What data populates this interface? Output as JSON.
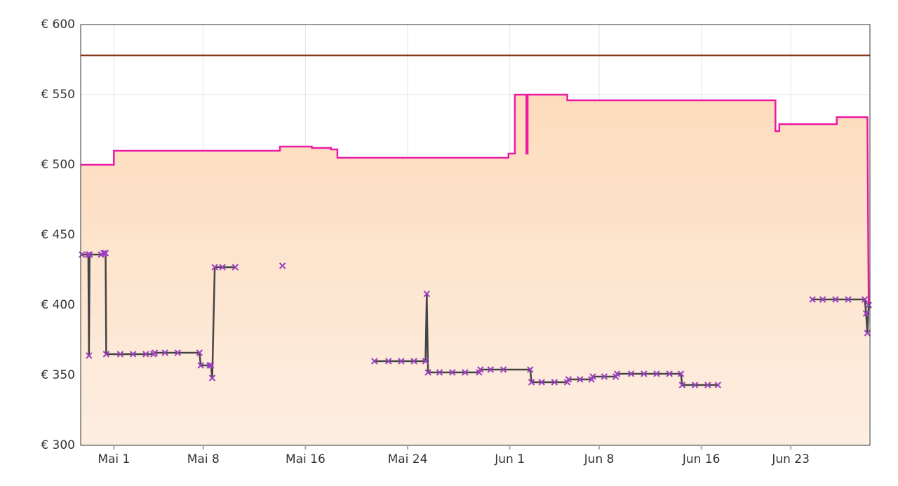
{
  "chart_data": {
    "type": "line",
    "xlim": [
      -2.6,
      59.2
    ],
    "xticks": [
      {
        "value": 0,
        "label": "Mai 1"
      },
      {
        "value": 7,
        "label": "Mai 8"
      },
      {
        "value": 15,
        "label": "Mai 16"
      },
      {
        "value": 23,
        "label": "Mai 24"
      },
      {
        "value": 31,
        "label": "Jun 1"
      },
      {
        "value": 38,
        "label": "Jun 8"
      },
      {
        "value": 46,
        "label": "Jun 16"
      },
      {
        "value": 53,
        "label": "Jun 23"
      }
    ],
    "ylim": [
      300,
      600
    ],
    "yticks": [
      {
        "value": 300,
        "label": "€ 300"
      },
      {
        "value": 350,
        "label": "€ 350"
      },
      {
        "value": 400,
        "label": "€ 400"
      },
      {
        "value": 450,
        "label": "€ 450"
      },
      {
        "value": 500,
        "label": "€ 500"
      },
      {
        "value": 550,
        "label": "€ 550"
      },
      {
        "value": 600,
        "label": "€ 600"
      }
    ],
    "grid": true,
    "series": [
      {
        "style": "area-line",
        "color": "#ec1aa4",
        "x": [
          -2.6,
          0,
          0,
          13,
          13,
          15.5,
          15.5,
          17,
          17,
          17.5,
          17.5,
          30.9,
          30.9,
          31.4,
          31.4,
          32.3,
          32.3,
          32.4,
          32.4,
          35.5,
          35.5,
          51.8,
          51.8,
          52.1,
          52.1,
          56.6,
          56.6,
          59.0,
          59.1
        ],
        "values": [
          500,
          500,
          510,
          510,
          513,
          513,
          512,
          512,
          511,
          511,
          505,
          505,
          508,
          508,
          550,
          550,
          508,
          508,
          550,
          550,
          546,
          546,
          524,
          524,
          529,
          529,
          534,
          534,
          400
        ]
      },
      {
        "style": "line",
        "color": "#8b3a1a",
        "x": [
          -2.6,
          59.2
        ],
        "values": [
          578,
          578
        ]
      },
      {
        "style": "markers",
        "color": "#9b3fc0",
        "line_color": "#444444",
        "x": [
          -2.5,
          -2.0,
          -1.95,
          -1.9,
          -1.0,
          -0.8,
          -0.65,
          -0.6,
          0.5,
          1.5,
          2.5,
          3.1,
          3.2,
          4,
          5,
          6.7,
          6.8,
          7.5,
          7.6,
          7.7,
          7.9,
          8.5,
          9.5,
          11,
          13.2,
          17,
          20.4,
          21.5,
          22.5,
          23.5,
          24.4,
          24.5,
          24.6,
          25.5,
          26.5,
          27.5,
          28.6,
          28.7,
          29.5,
          30.5,
          32.6,
          32.7,
          33.5,
          34.5,
          35.5,
          35.6,
          36.5,
          37.4,
          37.5,
          38.4,
          39.3,
          39.4,
          40.5,
          41.5,
          42.5,
          43.5,
          44.4,
          44.5,
          45.5,
          46.5,
          47.3,
          51,
          54.7,
          55.5,
          56.5,
          57.5,
          58.8,
          58.9,
          59.0,
          59.1
        ],
        "values": [
          436,
          436,
          364,
          436,
          436,
          437,
          437,
          365,
          365,
          365,
          365,
          365,
          366,
          366,
          366,
          366,
          357,
          357,
          357,
          348,
          427,
          427,
          427,
          null,
          428,
          null,
          360,
          360,
          360,
          360,
          360,
          408,
          352,
          352,
          352,
          352,
          352,
          354,
          354,
          354,
          354,
          345,
          345,
          345,
          345,
          347,
          347,
          347,
          349,
          349,
          349,
          351,
          351,
          351,
          351,
          351,
          351,
          343,
          343,
          343,
          343,
          null,
          404,
          404,
          404,
          404,
          404,
          394,
          380,
          400
        ]
      }
    ]
  }
}
